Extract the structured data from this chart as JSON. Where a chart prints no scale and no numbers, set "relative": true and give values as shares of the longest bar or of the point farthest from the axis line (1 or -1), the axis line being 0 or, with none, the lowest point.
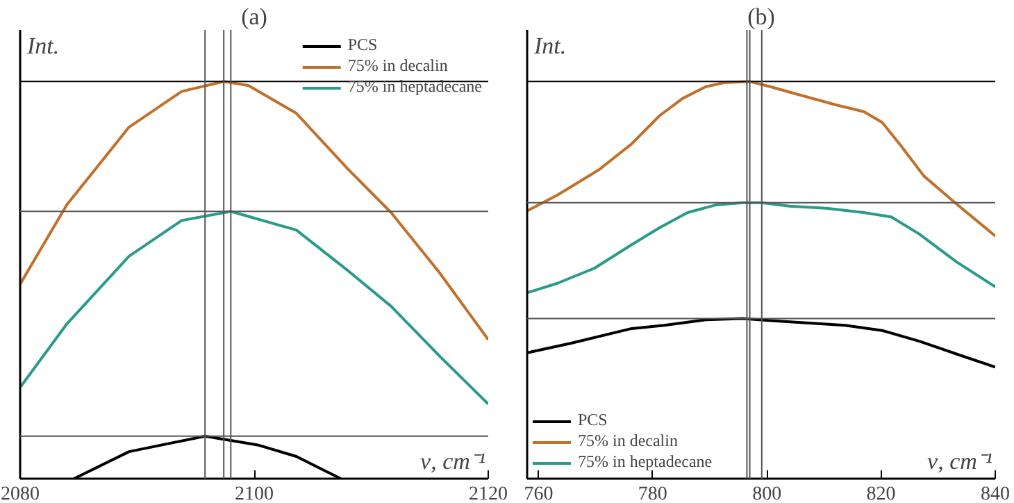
{
  "chart_data": [
    {
      "type": "line",
      "title": "(a)",
      "xlabel": "ν, cm⁻¹",
      "ylabel": "Int.",
      "relative": true,
      "xlim": [
        2080,
        2120
      ],
      "xticks": [
        2080,
        2100,
        2120
      ],
      "legend": "top right",
      "grid": false,
      "series": [
        {
          "name": "PCS",
          "color": "#000000",
          "x": [
            2084.6,
            2089.3,
            2095.8,
            2100.3,
            2103.6,
            2107.4
          ],
          "values": [
            0,
            0.068,
            0.107,
            0.085,
            0.056,
            0
          ]
        },
        {
          "name": "75% in decalin",
          "color": "#c0702a",
          "x": [
            2080,
            2084,
            2089.3,
            2093.8,
            2097.4,
            2099.5,
            2103.6,
            2108,
            2111.7,
            2115.8,
            2120
          ],
          "values": [
            0.49,
            0.69,
            0.885,
            0.975,
            1.0,
            0.99,
            0.92,
            0.78,
            0.67,
            0.52,
            0.35
          ]
        },
        {
          "name": "75% in heptadecane",
          "color": "#2a9a8a",
          "x": [
            2080,
            2084,
            2089.3,
            2093.8,
            2098,
            2103.6,
            2108,
            2111.7,
            2115.8,
            2120
          ],
          "values": [
            0.23,
            0.39,
            0.56,
            0.65,
            0.673,
            0.626,
            0.524,
            0.434,
            0.31,
            0.188
          ]
        }
      ],
      "ref_lines": [
        {
          "axis": "y",
          "value": 1.0,
          "color": "#000000"
        },
        {
          "axis": "y",
          "value": 0.673,
          "color": "#555555"
        },
        {
          "axis": "y",
          "value": 0.107,
          "color": "#555555"
        },
        {
          "axis": "x",
          "value": 2097.4,
          "color": "#555555"
        },
        {
          "axis": "x",
          "value": 2098,
          "color": "#555555"
        },
        {
          "axis": "x",
          "value": 2095.8,
          "color": "#555555"
        }
      ]
    },
    {
      "type": "line",
      "title": "(b)",
      "xlabel": "ν, cm⁻¹",
      "ylabel": "Int.",
      "relative": true,
      "xlim": [
        758,
        840
      ],
      "xticks": [
        760,
        780,
        800,
        820,
        840
      ],
      "legend": "bottom left",
      "grid": false,
      "series": [
        {
          "name": "PCS",
          "color": "#000000",
          "x": [
            758,
            765.7,
            776.3,
            782,
            789.3,
            795.8,
            800.7,
            813.7,
            820.2,
            826.7,
            833.2,
            840
          ],
          "values": [
            0.317,
            0.341,
            0.378,
            0.386,
            0.4,
            0.403,
            0.398,
            0.386,
            0.373,
            0.346,
            0.314,
            0.281
          ]
        },
        {
          "name": "75% in decalin",
          "color": "#c0702a",
          "x": [
            758,
            763.3,
            770.6,
            776.3,
            781.2,
            785.2,
            789.3,
            792.5,
            797,
            800.6,
            804.8,
            812.1,
            817,
            820.2,
            823.5,
            827.5,
            833.2,
            840
          ],
          "values": [
            0.674,
            0.714,
            0.778,
            0.843,
            0.914,
            0.957,
            0.987,
            0.997,
            1.0,
            0.987,
            0.97,
            0.941,
            0.924,
            0.897,
            0.838,
            0.762,
            0.692,
            0.611
          ]
        },
        {
          "name": "75% in heptadecane",
          "color": "#2a9a8a",
          "x": [
            758,
            763.3,
            769.8,
            776.3,
            781.2,
            786.1,
            791,
            795.8,
            799.1,
            804,
            810.4,
            817,
            821.8,
            826.7,
            833.2,
            840
          ],
          "values": [
            0.468,
            0.492,
            0.53,
            0.589,
            0.632,
            0.67,
            0.689,
            0.695,
            0.695,
            0.686,
            0.681,
            0.67,
            0.659,
            0.616,
            0.546,
            0.483
          ]
        }
      ],
      "ref_lines": [
        {
          "axis": "y",
          "value": 1.0,
          "color": "#000000"
        },
        {
          "axis": "y",
          "value": 0.695,
          "color": "#555555"
        },
        {
          "axis": "y",
          "value": 0.403,
          "color": "#555555"
        },
        {
          "axis": "x",
          "value": 797,
          "color": "#555555"
        },
        {
          "axis": "x",
          "value": 799.1,
          "color": "#555555"
        },
        {
          "axis": "x",
          "value": 796.5,
          "color": "#555555"
        }
      ]
    }
  ]
}
